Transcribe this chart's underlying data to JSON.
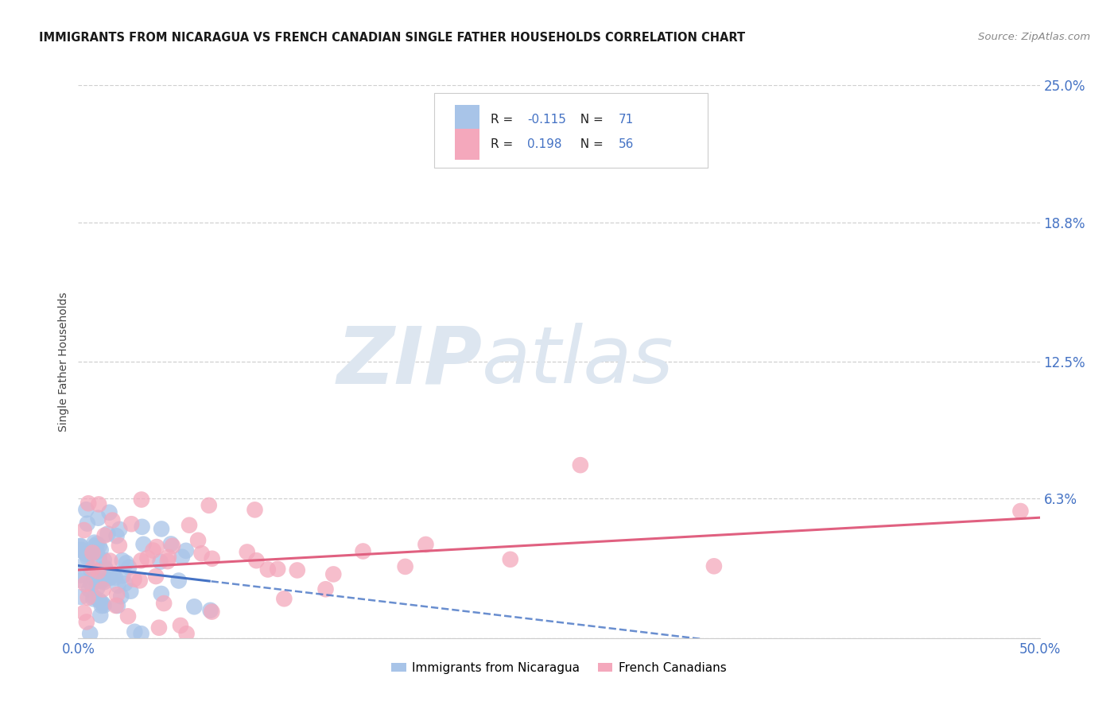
{
  "title": "IMMIGRANTS FROM NICARAGUA VS FRENCH CANADIAN SINGLE FATHER HOUSEHOLDS CORRELATION CHART",
  "source": "Source: ZipAtlas.com",
  "ylabel": "Single Father Households",
  "xlim": [
    0.0,
    0.5
  ],
  "ylim": [
    0.0,
    0.25
  ],
  "yticks": [
    0.0,
    0.063,
    0.125,
    0.188,
    0.25
  ],
  "ytick_labels": [
    "",
    "6.3%",
    "12.5%",
    "18.8%",
    "25.0%"
  ],
  "background_color": "#ffffff",
  "grid_color": "#d0d0d0",
  "watermark_zip": "ZIP",
  "watermark_atlas": "atlas",
  "watermark_color": "#dde6f0",
  "series": [
    {
      "name": "Immigrants from Nicaragua",
      "R": -0.115,
      "N": 71,
      "color": "#a8c4e8",
      "line_color": "#4472c4",
      "legend_color": "#a8c4e8"
    },
    {
      "name": "French Canadians",
      "R": 0.198,
      "N": 56,
      "color": "#f4a8bc",
      "line_color": "#e06080",
      "legend_color": "#f4a8bc"
    }
  ]
}
